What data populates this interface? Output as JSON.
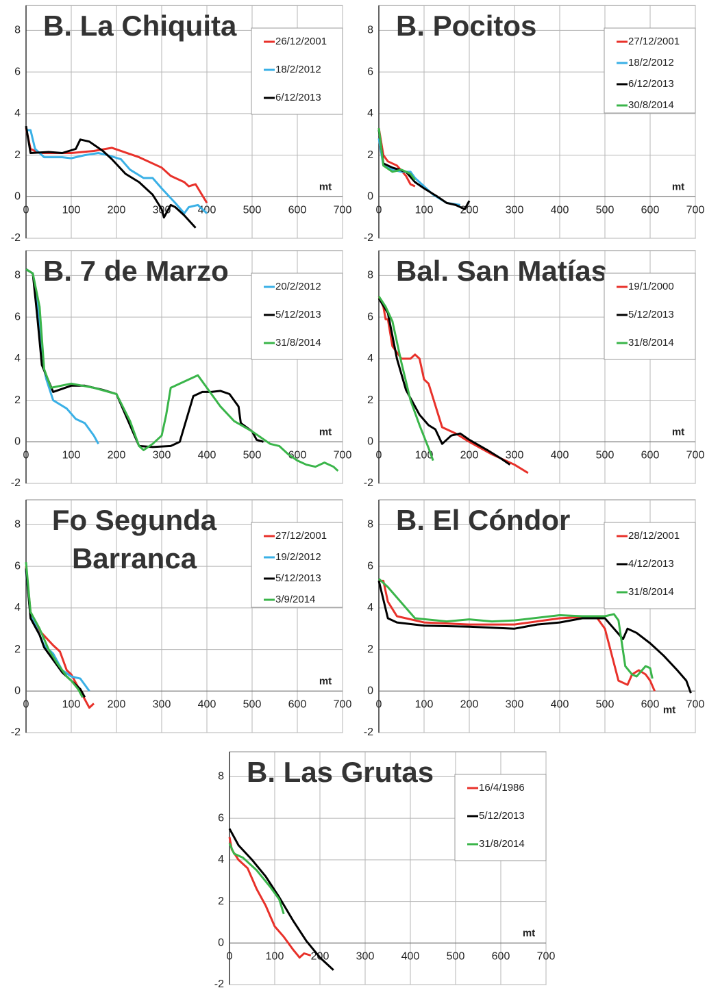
{
  "chart_data": [
    {
      "type": "line",
      "title": [
        "B. La Chiquita"
      ],
      "xlabel": "mt",
      "xlabel_position": "above",
      "xlim": [
        0,
        700
      ],
      "ylim": [
        -2,
        9.2
      ],
      "xticks": [
        0,
        100,
        200,
        300,
        400,
        500,
        600,
        700
      ],
      "yticks": [
        -2,
        0,
        2,
        4,
        6,
        8
      ],
      "grid": true,
      "legend": "upper right",
      "series": [
        {
          "name": "26/12/2001",
          "color": "#e8312a",
          "x": [
            0,
            10,
            30,
            100,
            150,
            190,
            250,
            300,
            320,
            350,
            360,
            375,
            400
          ],
          "values": [
            3.3,
            2.3,
            2.1,
            2.1,
            2.2,
            2.35,
            1.9,
            1.4,
            1.0,
            0.7,
            0.5,
            0.6,
            -0.3
          ]
        },
        {
          "name": "18/2/2012",
          "color": "#3ab0e6",
          "x": [
            0,
            10,
            20,
            40,
            80,
            100,
            130,
            160,
            180,
            210,
            230,
            260,
            280,
            300,
            330,
            350,
            360,
            380,
            400
          ],
          "values": [
            3.2,
            3.2,
            2.3,
            1.9,
            1.9,
            1.85,
            2.0,
            2.1,
            2.0,
            1.8,
            1.3,
            0.9,
            0.9,
            0.4,
            -0.3,
            -0.8,
            -0.5,
            -0.4,
            -0.8
          ]
        },
        {
          "name": "6/12/2013",
          "color": "#000000",
          "x": [
            0,
            10,
            50,
            80,
            110,
            120,
            140,
            170,
            190,
            220,
            250,
            280,
            300,
            305,
            320,
            330,
            350,
            375
          ],
          "values": [
            3.4,
            2.1,
            2.15,
            2.1,
            2.3,
            2.75,
            2.65,
            2.2,
            1.8,
            1.1,
            0.7,
            0.1,
            -0.6,
            -1.0,
            -0.4,
            -0.5,
            -0.9,
            -1.5
          ]
        }
      ]
    },
    {
      "type": "line",
      "title": [
        "B. Pocitos"
      ],
      "xlabel": "mt",
      "xlabel_position": "above",
      "xlim": [
        0,
        700
      ],
      "ylim": [
        -2,
        9.2
      ],
      "xticks": [
        0,
        100,
        200,
        300,
        400,
        500,
        600,
        700
      ],
      "yticks": [
        -2,
        0,
        2,
        4,
        6,
        8
      ],
      "grid": true,
      "legend": "upper right",
      "series": [
        {
          "name": "27/12/2001",
          "color": "#e8312a",
          "x": [
            0,
            10,
            20,
            40,
            60,
            70,
            80
          ],
          "values": [
            3.3,
            2.0,
            1.7,
            1.5,
            1.0,
            0.6,
            0.5
          ]
        },
        {
          "name": "18/2/2012",
          "color": "#3ab0e6",
          "x": [
            0,
            10,
            30,
            50,
            70,
            80,
            100,
            120,
            150,
            180
          ],
          "values": [
            2.8,
            1.5,
            1.3,
            1.2,
            1.2,
            0.9,
            0.5,
            0.1,
            -0.3,
            -0.4
          ]
        },
        {
          "name": "6/12/2013",
          "color": "#000000",
          "x": [
            0,
            10,
            30,
            60,
            80,
            100,
            130,
            150,
            170,
            190,
            200
          ],
          "values": [
            3.2,
            1.6,
            1.4,
            1.2,
            0.7,
            0.4,
            0.0,
            -0.3,
            -0.4,
            -0.6,
            -0.2
          ]
        },
        {
          "name": "30/8/2014",
          "color": "#3ab54a",
          "x": [
            0,
            10,
            30,
            50,
            70,
            80
          ],
          "values": [
            3.3,
            1.5,
            1.2,
            1.3,
            1.1,
            0.8
          ]
        }
      ]
    },
    {
      "type": "line",
      "title": [
        "B. 7 de Marzo"
      ],
      "xlabel": "mt",
      "xlabel_position": "above",
      "xlim": [
        0,
        700
      ],
      "ylim": [
        -2,
        9.2
      ],
      "xticks": [
        0,
        100,
        200,
        300,
        400,
        500,
        600,
        700
      ],
      "yticks": [
        -2,
        0,
        2,
        4,
        6,
        8
      ],
      "grid": true,
      "legend": "upper right",
      "series": [
        {
          "name": "20/2/2012",
          "color": "#3ab0e6",
          "x": [
            0,
            15,
            25,
            35,
            45,
            60,
            90,
            110,
            130,
            150,
            160
          ],
          "values": [
            8.3,
            8.1,
            6.9,
            4.0,
            3.0,
            2.0,
            1.6,
            1.1,
            0.9,
            0.3,
            -0.1
          ]
        },
        {
          "name": "5/12/2013",
          "color": "#000000",
          "x": [
            0,
            15,
            25,
            35,
            60,
            100,
            130,
            170,
            200,
            230,
            250,
            280,
            320,
            340,
            370,
            390,
            410,
            430,
            450,
            470,
            475,
            500,
            510,
            525
          ],
          "values": [
            8.3,
            8.1,
            6.0,
            3.7,
            2.4,
            2.7,
            2.7,
            2.5,
            2.3,
            0.8,
            -0.2,
            -0.25,
            -0.2,
            0.0,
            2.2,
            2.4,
            2.4,
            2.45,
            2.3,
            1.7,
            0.9,
            0.5,
            0.1,
            0.0
          ]
        },
        {
          "name": "31/8/2014",
          "color": "#3ab54a",
          "x": [
            0,
            15,
            30,
            40,
            55,
            100,
            150,
            200,
            230,
            250,
            260,
            280,
            300,
            310,
            320,
            350,
            380,
            400,
            430,
            460,
            500,
            540,
            560,
            580,
            600,
            620,
            640,
            660,
            680,
            690
          ],
          "values": [
            8.3,
            8.1,
            6.5,
            3.5,
            2.6,
            2.8,
            2.6,
            2.3,
            1.0,
            -0.2,
            -0.4,
            -0.1,
            0.3,
            1.3,
            2.6,
            2.9,
            3.2,
            2.6,
            1.7,
            1.0,
            0.5,
            -0.1,
            -0.2,
            -0.6,
            -0.9,
            -1.1,
            -1.2,
            -1.0,
            -1.2,
            -1.4
          ]
        }
      ]
    },
    {
      "type": "line",
      "title": [
        "Bal. San Matías"
      ],
      "xlabel": "mt",
      "xlabel_position": "above",
      "xlim": [
        0,
        700
      ],
      "ylim": [
        -2,
        9.2
      ],
      "xticks": [
        0,
        100,
        200,
        300,
        400,
        500,
        600,
        700
      ],
      "yticks": [
        -2,
        0,
        2,
        4,
        6,
        8
      ],
      "grid": true,
      "legend": "upper right",
      "series": [
        {
          "name": "19/1/2000",
          "color": "#e8312a",
          "x": [
            0,
            10,
            15,
            20,
            30,
            50,
            70,
            80,
            90,
            100,
            110,
            140,
            170,
            200,
            250,
            300,
            330
          ],
          "values": [
            7.0,
            6.5,
            5.9,
            5.9,
            4.6,
            4.0,
            4.0,
            4.2,
            4.0,
            3.0,
            2.8,
            0.7,
            0.4,
            0.0,
            -0.6,
            -1.1,
            -1.5
          ]
        },
        {
          "name": "5/12/2013",
          "color": "#000000",
          "x": [
            0,
            20,
            40,
            60,
            90,
            110,
            125,
            140,
            160,
            180,
            200,
            240,
            270,
            290
          ],
          "values": [
            6.9,
            6.2,
            4.0,
            2.5,
            1.3,
            0.8,
            0.6,
            -0.1,
            0.3,
            0.4,
            0.1,
            -0.4,
            -0.8,
            -1.1
          ]
        },
        {
          "name": "31/8/2014",
          "color": "#3ab54a",
          "x": [
            0,
            15,
            30,
            50,
            70,
            90,
            110,
            120
          ],
          "values": [
            7.0,
            6.5,
            5.8,
            3.8,
            2.0,
            0.8,
            -0.3,
            -0.9
          ]
        }
      ]
    },
    {
      "type": "line",
      "title": [
        "Fo Segunda",
        "Barranca"
      ],
      "xlabel": "mt",
      "xlabel_position": "above",
      "xlim": [
        0,
        700
      ],
      "ylim": [
        -2,
        9.2
      ],
      "xticks": [
        0,
        100,
        200,
        300,
        400,
        500,
        600,
        700
      ],
      "yticks": [
        -2,
        0,
        2,
        4,
        6,
        8
      ],
      "grid": true,
      "legend": "upper right",
      "series": [
        {
          "name": "27/12/2001",
          "color": "#e8312a",
          "x": [
            0,
            10,
            30,
            60,
            75,
            90,
            100,
            120,
            140,
            150
          ],
          "values": [
            6.0,
            3.8,
            2.9,
            2.2,
            1.9,
            1.0,
            0.8,
            0.0,
            -0.8,
            -0.6
          ]
        },
        {
          "name": "19/2/2012",
          "color": "#3ab0e6",
          "x": [
            0,
            10,
            20,
            40,
            60,
            80,
            100,
            120,
            140
          ],
          "values": [
            5.8,
            3.6,
            3.2,
            2.2,
            1.8,
            1.0,
            0.7,
            0.6,
            0.0
          ]
        },
        {
          "name": "5/12/2013",
          "color": "#000000",
          "x": [
            0,
            10,
            30,
            40,
            60,
            80,
            100,
            120,
            130
          ],
          "values": [
            5.9,
            3.5,
            2.7,
            2.1,
            1.5,
            0.9,
            0.5,
            0.1,
            -0.3
          ]
        },
        {
          "name": "3/9/2014",
          "color": "#3ab54a",
          "x": [
            0,
            10,
            30,
            50,
            70,
            90,
            100,
            115,
            125
          ],
          "values": [
            6.2,
            3.8,
            3.0,
            2.0,
            1.3,
            0.7,
            0.5,
            0.1,
            -0.3
          ]
        }
      ]
    },
    {
      "type": "line",
      "title": [
        "B. El Cóndor"
      ],
      "xlabel": "mt",
      "xlabel_position": "below",
      "xlim": [
        0,
        700
      ],
      "ylim": [
        -2,
        9.2
      ],
      "xticks": [
        0,
        100,
        200,
        300,
        400,
        500,
        600,
        700
      ],
      "yticks": [
        -2,
        0,
        2,
        4,
        6,
        8
      ],
      "grid": true,
      "legend": "upper right",
      "series": [
        {
          "name": "28/12/2001",
          "color": "#e8312a",
          "x": [
            0,
            10,
            20,
            40,
            100,
            200,
            300,
            400,
            480,
            500,
            530,
            550,
            560,
            575,
            590,
            600,
            610
          ],
          "values": [
            5.3,
            5.3,
            4.3,
            3.6,
            3.3,
            3.2,
            3.2,
            3.5,
            3.6,
            3.0,
            0.5,
            0.3,
            0.8,
            1.0,
            0.8,
            0.5,
            0.0
          ]
        },
        {
          "name": "4/12/2013",
          "color": "#000000",
          "x": [
            0,
            20,
            40,
            100,
            200,
            300,
            350,
            400,
            450,
            500,
            520,
            540,
            550,
            570,
            600,
            630,
            660,
            680,
            690
          ],
          "values": [
            5.3,
            3.5,
            3.3,
            3.15,
            3.1,
            3.0,
            3.2,
            3.3,
            3.5,
            3.5,
            3.0,
            2.5,
            3.0,
            2.8,
            2.3,
            1.7,
            1.0,
            0.5,
            -0.1
          ]
        },
        {
          "name": "31/8/2014",
          "color": "#3ab54a",
          "x": [
            0,
            20,
            60,
            80,
            150,
            200,
            250,
            300,
            400,
            450,
            500,
            520,
            530,
            545,
            560,
            570,
            590,
            600,
            605
          ],
          "values": [
            5.4,
            5.0,
            4.0,
            3.5,
            3.35,
            3.45,
            3.35,
            3.4,
            3.65,
            3.6,
            3.6,
            3.7,
            3.4,
            1.2,
            0.8,
            0.7,
            1.2,
            1.1,
            0.6
          ]
        }
      ]
    },
    {
      "type": "line",
      "title": [
        "B. Las Grutas"
      ],
      "xlabel": "mt",
      "xlabel_position": "above",
      "xlim": [
        0,
        700
      ],
      "ylim": [
        -2,
        9.2
      ],
      "xticks": [
        0,
        100,
        200,
        300,
        400,
        500,
        600,
        700
      ],
      "yticks": [
        -2,
        0,
        2,
        4,
        6,
        8
      ],
      "grid": true,
      "legend": "upper right",
      "series": [
        {
          "name": "16/4/1986",
          "color": "#e8312a",
          "x": [
            0,
            5,
            20,
            40,
            60,
            80,
            100,
            120,
            140,
            155,
            165,
            180
          ],
          "values": [
            5.1,
            4.5,
            4.0,
            3.6,
            2.6,
            1.8,
            0.8,
            0.3,
            -0.3,
            -0.7,
            -0.5,
            -0.6
          ]
        },
        {
          "name": "5/12/2013",
          "color": "#000000",
          "x": [
            0,
            20,
            50,
            80,
            110,
            140,
            170,
            200,
            230
          ],
          "values": [
            5.5,
            4.7,
            4.0,
            3.2,
            2.2,
            1.1,
            0.1,
            -0.7,
            -1.3
          ]
        },
        {
          "name": "31/8/2014",
          "color": "#3ab54a",
          "x": [
            0,
            10,
            30,
            60,
            90,
            110,
            120
          ],
          "values": [
            4.8,
            4.3,
            4.1,
            3.5,
            2.7,
            2.1,
            1.4
          ]
        }
      ]
    }
  ]
}
